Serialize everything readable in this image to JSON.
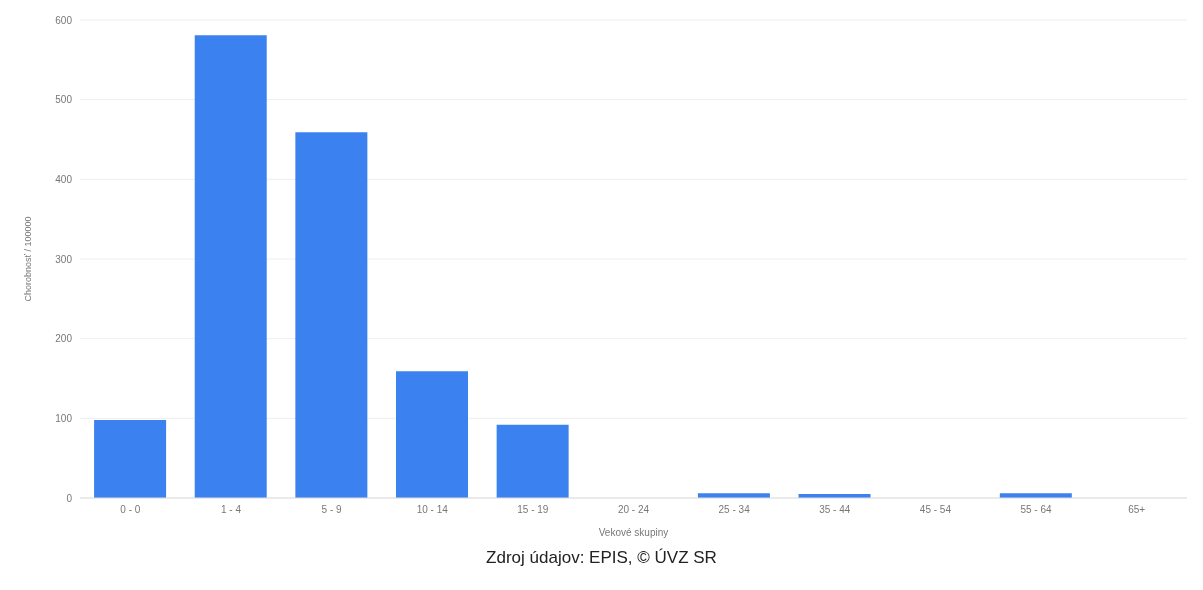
{
  "chart_data": {
    "type": "bar",
    "xlabel": "Vekové skupiny",
    "ylabel": "Chorobnosť / 100000",
    "categories": [
      "0 - 0",
      "1 - 4",
      "5 - 9",
      "10 - 14",
      "15 - 19",
      "20 - 24",
      "25 - 34",
      "35 - 44",
      "45 - 54",
      "55 - 64",
      "65+"
    ],
    "values": [
      98,
      581,
      459,
      159,
      92,
      0,
      6,
      5,
      0,
      6,
      0
    ],
    "color": "#3b82f0",
    "ylim": [
      0,
      600
    ],
    "yticks": [
      0,
      100,
      200,
      300,
      400,
      500,
      600
    ],
    "grid": "y",
    "annotations": [
      "Zdroj údajov: EPIS, © ÚVZ SR"
    ]
  }
}
